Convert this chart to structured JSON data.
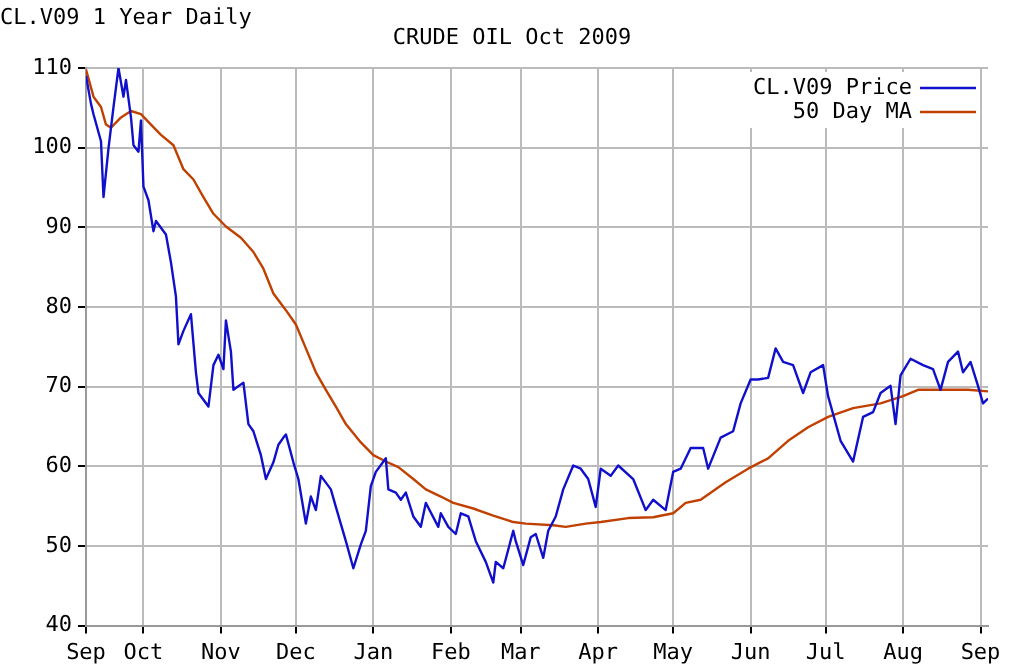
{
  "chart_data": {
    "type": "line",
    "title": "CRUDE OIL Oct 2009",
    "subtitle": "CL.V09 1 Year Daily",
    "xlim": [
      "2008-09-08",
      "2009-09-04"
    ],
    "xticks": [
      {
        "value": "2008-09-08",
        "label": "Sep"
      },
      {
        "value": "2008-10-01",
        "label": "Oct"
      },
      {
        "value": "2008-11-01",
        "label": "Nov"
      },
      {
        "value": "2008-12-01",
        "label": "Dec"
      },
      {
        "value": "2009-01-01",
        "label": "Jan"
      },
      {
        "value": "2009-02-01",
        "label": "Feb"
      },
      {
        "value": "2009-03-01",
        "label": "Mar"
      },
      {
        "value": "2009-04-01",
        "label": "Apr"
      },
      {
        "value": "2009-05-01",
        "label": "May"
      },
      {
        "value": "2009-06-01",
        "label": "Jun"
      },
      {
        "value": "2009-07-01",
        "label": "Jul"
      },
      {
        "value": "2009-08-01",
        "label": "Aug"
      },
      {
        "value": "2009-09-01",
        "label": "Sep"
      }
    ],
    "ylim": [
      40,
      110
    ],
    "yticks": [
      40,
      50,
      60,
      70,
      80,
      90,
      100,
      110
    ],
    "grid": true,
    "legend": "top right",
    "marker": "none",
    "line_style": "solid",
    "series": [
      {
        "name": "CL.V09 Price",
        "color": "#1010cc",
        "x": [
          "2008-09-08",
          "2008-09-10",
          "2008-09-11",
          "2008-09-14",
          "2008-09-15",
          "2008-09-17",
          "2008-09-19",
          "2008-09-21",
          "2008-09-23",
          "2008-09-24",
          "2008-09-26",
          "2008-09-27",
          "2008-09-29",
          "2008-09-30",
          "2008-10-01",
          "2008-10-03",
          "2008-10-05",
          "2008-10-06",
          "2008-10-10",
          "2008-10-12",
          "2008-10-14",
          "2008-10-15",
          "2008-10-17",
          "2008-10-20",
          "2008-10-22",
          "2008-10-23",
          "2008-10-27",
          "2008-10-29",
          "2008-10-31",
          "2008-11-02",
          "2008-11-03",
          "2008-11-05",
          "2008-11-06",
          "2008-11-10",
          "2008-11-12",
          "2008-11-14",
          "2008-11-17",
          "2008-11-19",
          "2008-11-22",
          "2008-11-24",
          "2008-11-26",
          "2008-11-27",
          "2008-11-30",
          "2008-12-02",
          "2008-12-05",
          "2008-12-07",
          "2008-12-09",
          "2008-12-11",
          "2008-12-15",
          "2008-12-17",
          "2008-12-21",
          "2008-12-24",
          "2008-12-27",
          "2008-12-29",
          "2008-12-31",
          "2009-01-02",
          "2009-01-06",
          "2009-01-07",
          "2009-01-10",
          "2009-01-12",
          "2009-01-14",
          "2009-01-17",
          "2009-01-20",
          "2009-01-22",
          "2009-01-27",
          "2009-01-28",
          "2009-01-31",
          "2009-02-03",
          "2009-02-05",
          "2009-02-08",
          "2009-02-11",
          "2009-02-15",
          "2009-02-18",
          "2009-02-19",
          "2009-02-22",
          "2009-02-26",
          "2009-02-27",
          "2009-03-02",
          "2009-03-05",
          "2009-03-07",
          "2009-03-10",
          "2009-03-12",
          "2009-03-15",
          "2009-03-18",
          "2009-03-22",
          "2009-03-25",
          "2009-03-28",
          "2009-03-31",
          "2009-04-02",
          "2009-04-06",
          "2009-04-09",
          "2009-04-15",
          "2009-04-20",
          "2009-04-23",
          "2009-04-28",
          "2009-05-01",
          "2009-05-04",
          "2009-05-08",
          "2009-05-12",
          "2009-05-13",
          "2009-05-15",
          "2009-05-20",
          "2009-05-25",
          "2009-05-28",
          "2009-06-01",
          "2009-06-04",
          "2009-06-08",
          "2009-06-11",
          "2009-06-14",
          "2009-06-18",
          "2009-06-22",
          "2009-06-25",
          "2009-06-30",
          "2009-07-02",
          "2009-07-07",
          "2009-07-12",
          "2009-07-16",
          "2009-07-20",
          "2009-07-23",
          "2009-07-27",
          "2009-07-29",
          "2009-07-31",
          "2009-08-04",
          "2009-08-09",
          "2009-08-13",
          "2009-08-16",
          "2009-08-19",
          "2009-08-23",
          "2009-08-25",
          "2009-08-28",
          "2009-08-31",
          "2009-09-02",
          "2009-09-04"
        ],
        "values": [
          109,
          105.5,
          104.2,
          100.8,
          93.8,
          99.9,
          105.1,
          110,
          106.4,
          108.5,
          103.8,
          100.3,
          99.5,
          103.4,
          95.1,
          93.4,
          89.5,
          90.8,
          89.1,
          85.6,
          81.3,
          75.3,
          77,
          79.1,
          71.8,
          69.2,
          67.5,
          72.7,
          74,
          72.2,
          78.3,
          74.4,
          69.6,
          70.5,
          65.3,
          64.4,
          61.4,
          58.4,
          60.5,
          62.7,
          63.6,
          64,
          60.5,
          58.4,
          52.8,
          56.2,
          54.5,
          58.8,
          57.1,
          54.9,
          50.6,
          47.2,
          50.2,
          51.9,
          57.5,
          59.3,
          61,
          57.1,
          56.7,
          55.8,
          56.7,
          53.7,
          52.4,
          55.4,
          52.4,
          54.1,
          52.4,
          51.5,
          54.1,
          53.7,
          50.6,
          48,
          45.4,
          48,
          47.2,
          51.9,
          50.6,
          47.6,
          51.1,
          51.5,
          48.5,
          51.9,
          53.7,
          57.1,
          60.1,
          59.7,
          58.4,
          54.9,
          59.7,
          58.8,
          60.1,
          58.4,
          54.5,
          55.8,
          54.5,
          59.3,
          59.7,
          62.3,
          62.3,
          62.3,
          59.7,
          63.6,
          64.4,
          67.9,
          70.9,
          70.9,
          71.1,
          74.8,
          73.1,
          72.7,
          69.2,
          71.8,
          72.7,
          68.8,
          63.2,
          60.6,
          66.2,
          66.8,
          69.2,
          70.1,
          65.3,
          71.4,
          73.5,
          72.7,
          72.2,
          69.6,
          73.1,
          74.4,
          71.8,
          73.1,
          70.1,
          67.9,
          68.5
        ]
      },
      {
        "name": "50 Day MA",
        "color": "#c04000",
        "x": [
          "2008-09-08",
          "2008-09-11",
          "2008-09-14",
          "2008-09-16",
          "2008-09-18",
          "2008-09-22",
          "2008-09-26",
          "2008-09-30",
          "2008-10-04",
          "2008-10-08",
          "2008-10-13",
          "2008-10-17",
          "2008-10-21",
          "2008-10-25",
          "2008-10-29",
          "2008-11-03",
          "2008-11-09",
          "2008-11-14",
          "2008-11-18",
          "2008-11-22",
          "2008-11-27",
          "2008-12-01",
          "2008-12-05",
          "2008-12-09",
          "2008-12-13",
          "2008-12-17",
          "2008-12-21",
          "2008-12-27",
          "2009-01-01",
          "2009-01-06",
          "2009-01-11",
          "2009-01-17",
          "2009-01-22",
          "2009-01-28",
          "2009-02-02",
          "2009-02-10",
          "2009-02-18",
          "2009-02-26",
          "2009-03-03",
          "2009-03-14",
          "2009-03-19",
          "2009-03-27",
          "2009-04-02",
          "2009-04-13",
          "2009-04-23",
          "2009-05-01",
          "2009-05-06",
          "2009-05-12",
          "2009-05-22",
          "2009-05-31",
          "2009-06-08",
          "2009-06-16",
          "2009-06-24",
          "2009-07-02",
          "2009-07-12",
          "2009-07-23",
          "2009-08-01",
          "2009-08-07",
          "2009-08-16",
          "2009-08-27",
          "2009-09-04"
        ],
        "values": [
          109.8,
          106.4,
          105.1,
          102.9,
          102.5,
          103.8,
          104.6,
          104.2,
          102.9,
          101.6,
          100.3,
          97.3,
          96,
          93.8,
          91.7,
          90.1,
          88.7,
          86.9,
          84.8,
          81.7,
          79.6,
          77.8,
          74.8,
          71.8,
          69.6,
          67.5,
          65.3,
          63,
          61.4,
          60.6,
          59.9,
          58.4,
          57.1,
          56.2,
          55.4,
          54.7,
          53.8,
          53,
          52.8,
          52.6,
          52.4,
          52.8,
          53,
          53.5,
          53.6,
          54.1,
          55.4,
          55.8,
          58,
          59.7,
          61,
          63.2,
          64.9,
          66.2,
          67.3,
          67.9,
          68.8,
          69.6,
          69.6,
          69.6,
          69.4
        ]
      }
    ]
  }
}
